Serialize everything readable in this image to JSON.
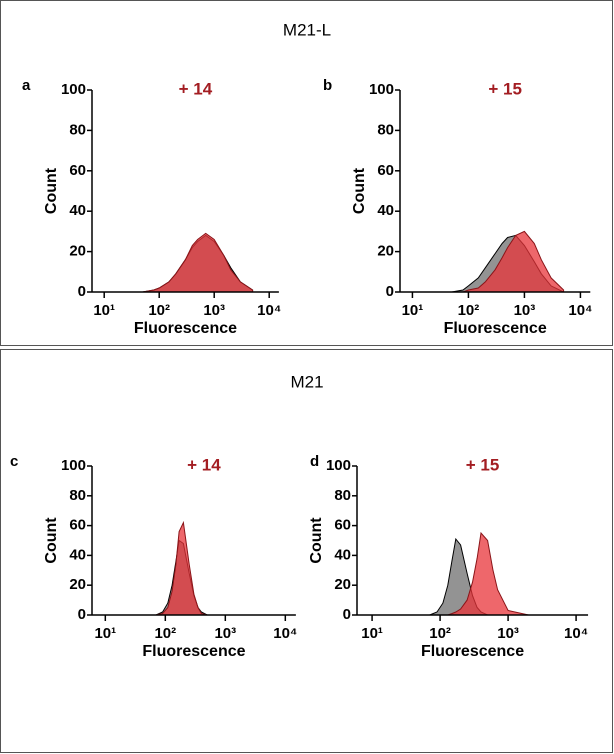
{
  "groups": [
    {
      "title": "M21-L"
    },
    {
      "title": "M21"
    }
  ],
  "chart_data": [
    {
      "type": "area",
      "panel": "a",
      "title": "+ 14",
      "x_label": "Fluorescence",
      "y_label": "Count",
      "x_scale": "log",
      "xlim": [
        6,
        15000
      ],
      "ylim": [
        0,
        100
      ],
      "yticks": [
        0,
        20,
        40,
        60,
        80,
        100
      ],
      "xticks": [
        {
          "value": 10,
          "label": "10¹"
        },
        {
          "value": 100,
          "label": "10²"
        },
        {
          "value": 1000,
          "label": "10³"
        },
        {
          "value": 10000,
          "label": "10⁴"
        }
      ],
      "x": [
        50,
        80,
        100,
        150,
        200,
        300,
        400,
        500,
        700,
        1000,
        1500,
        2000,
        3000,
        5000
      ],
      "series": [
        {
          "color": "#808080",
          "values": [
            0,
            1,
            2,
            5,
            9,
            16,
            22,
            25,
            28,
            25,
            18,
            12,
            5,
            1
          ]
        },
        {
          "color": "#e8343a",
          "values": [
            0,
            1,
            2,
            5,
            9,
            16,
            23,
            26,
            29,
            26,
            18,
            11,
            5,
            1
          ]
        }
      ]
    },
    {
      "type": "area",
      "panel": "b",
      "title": "+ 15",
      "x_label": "Fluorescence",
      "y_label": "Count",
      "x_scale": "log",
      "xlim": [
        6,
        15000
      ],
      "ylim": [
        0,
        100
      ],
      "yticks": [
        0,
        20,
        40,
        60,
        80,
        100
      ],
      "xticks": [
        {
          "value": 10,
          "label": "10¹"
        },
        {
          "value": 100,
          "label": "10²"
        },
        {
          "value": 1000,
          "label": "10³"
        },
        {
          "value": 10000,
          "label": "10⁴"
        }
      ],
      "x": [
        50,
        80,
        100,
        150,
        200,
        300,
        400,
        500,
        700,
        1000,
        1500,
        2000,
        3000,
        5000
      ],
      "series": [
        {
          "color": "#808080",
          "values": [
            0,
            1,
            3,
            7,
            12,
            19,
            24,
            27,
            28,
            23,
            15,
            9,
            3,
            0
          ]
        },
        {
          "color": "#e8343a",
          "values": [
            0,
            0,
            1,
            2,
            5,
            11,
            17,
            22,
            28,
            30,
            24,
            16,
            7,
            1
          ]
        }
      ]
    },
    {
      "type": "area",
      "panel": "c",
      "title": "+ 14",
      "x_label": "Fluorescence",
      "y_label": "Count",
      "x_scale": "log",
      "xlim": [
        6,
        15000
      ],
      "ylim": [
        0,
        100
      ],
      "yticks": [
        0,
        20,
        40,
        60,
        80,
        100
      ],
      "xticks": [
        {
          "value": 10,
          "label": "10¹"
        },
        {
          "value": 100,
          "label": "10²"
        },
        {
          "value": 1000,
          "label": "10³"
        },
        {
          "value": 10000,
          "label": "10⁴"
        }
      ],
      "x": [
        50,
        70,
        90,
        110,
        130,
        150,
        170,
        200,
        250,
        300,
        350,
        400,
        500,
        600,
        700,
        1000,
        2000,
        5000
      ],
      "series": [
        {
          "color": "#808080",
          "values": [
            0,
            0,
            2,
            8,
            20,
            36,
            50,
            48,
            28,
            13,
            5,
            2,
            0,
            0,
            0,
            0,
            0,
            0
          ]
        },
        {
          "color": "#e8343a",
          "values": [
            0,
            0,
            1,
            5,
            16,
            34,
            56,
            62,
            34,
            14,
            5,
            1,
            0,
            0,
            0,
            0,
            0,
            0
          ]
        }
      ]
    },
    {
      "type": "area",
      "panel": "d",
      "title": "+ 15",
      "x_label": "Fluorescence",
      "y_label": "Count",
      "x_scale": "log",
      "xlim": [
        6,
        15000
      ],
      "ylim": [
        0,
        100
      ],
      "yticks": [
        0,
        20,
        40,
        60,
        80,
        100
      ],
      "xticks": [
        {
          "value": 10,
          "label": "10¹"
        },
        {
          "value": 100,
          "label": "10²"
        },
        {
          "value": 1000,
          "label": "10³"
        },
        {
          "value": 10000,
          "label": "10⁴"
        }
      ],
      "x": [
        50,
        70,
        90,
        110,
        130,
        150,
        170,
        200,
        250,
        300,
        350,
        400,
        500,
        600,
        700,
        1000,
        2000,
        5000
      ],
      "series": [
        {
          "color": "#808080",
          "values": [
            0,
            0,
            2,
            8,
            20,
            37,
            51,
            47,
            28,
            13,
            5,
            2,
            0,
            0,
            0,
            0,
            0,
            0
          ]
        },
        {
          "color": "#e8343a",
          "values": [
            0,
            0,
            0,
            0,
            0,
            1,
            2,
            4,
            10,
            22,
            38,
            55,
            50,
            30,
            17,
            3,
            0,
            0
          ]
        }
      ]
    }
  ]
}
